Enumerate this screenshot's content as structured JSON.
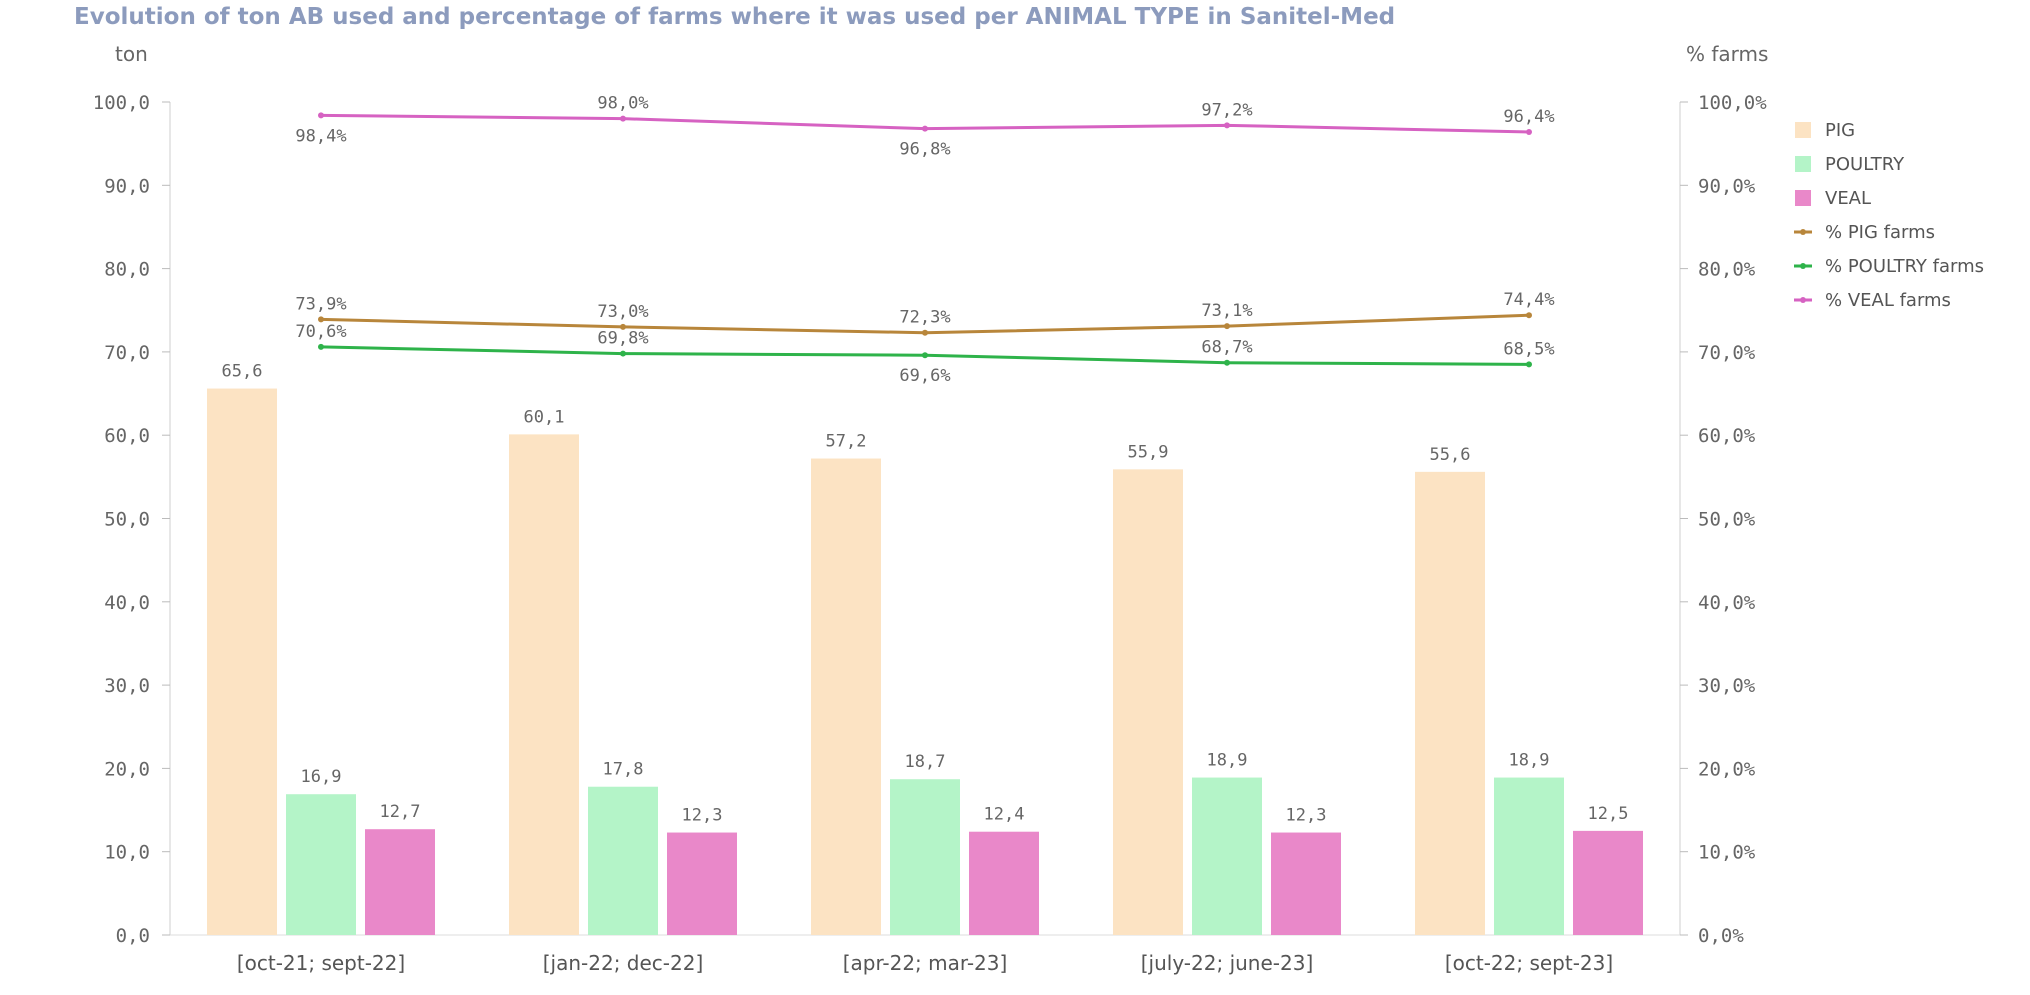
{
  "chart_data": {
    "type": "bar",
    "title": "Evolution of ton AB used and percentage of farms where it was used per ANIMAL TYPE in Sanitel-Med",
    "ylabel": "ton",
    "y2label": "% farms",
    "ylim": [
      0,
      100
    ],
    "y2lim": [
      0,
      100
    ],
    "yticks": [
      "0,0",
      "10,0",
      "20,0",
      "30,0",
      "40,0",
      "50,0",
      "60,0",
      "70,0",
      "80,0",
      "90,0",
      "100,0"
    ],
    "y2ticks": [
      "0,0%",
      "10,0%",
      "20,0%",
      "30,0%",
      "40,0%",
      "50,0%",
      "60,0%",
      "70,0%",
      "80,0%",
      "90,0%",
      "100,0%"
    ],
    "categories": [
      "[oct-21; sept-22]",
      "[jan-22; dec-22]",
      "[apr-22; mar-23]",
      "[july-22; june-23]",
      "[oct-22; sept-23]"
    ],
    "series": [
      {
        "name": "PIG",
        "kind": "bar",
        "color": "#fce3c3",
        "values": [
          65.6,
          60.1,
          57.2,
          55.9,
          55.6
        ],
        "labels": [
          "65,6",
          "60,1",
          "57,2",
          "55,9",
          "55,6"
        ]
      },
      {
        "name": "POULTRY",
        "kind": "bar",
        "color": "#b4f4c8",
        "values": [
          16.9,
          17.8,
          18.7,
          18.9,
          18.9
        ],
        "labels": [
          "16,9",
          "17,8",
          "18,7",
          "18,9",
          "18,9"
        ]
      },
      {
        "name": "VEAL",
        "kind": "bar",
        "color": "#e988c9",
        "values": [
          12.7,
          12.3,
          12.4,
          12.3,
          12.5
        ],
        "labels": [
          "12,7",
          "12,3",
          "12,4",
          "12,3",
          "12,5"
        ]
      },
      {
        "name": "% PIG farms",
        "kind": "line",
        "axis": "right",
        "color": "#b8863b",
        "values": [
          73.9,
          73.0,
          72.3,
          73.1,
          74.4
        ],
        "labels": [
          "73,9%",
          "73,0%",
          "72,3%",
          "73,1%",
          "74,4%"
        ],
        "label_pos": [
          "above",
          "above",
          "above",
          "above",
          "above"
        ]
      },
      {
        "name": "% POULTRY farms",
        "kind": "line",
        "axis": "right",
        "color": "#2eb34a",
        "values": [
          70.6,
          69.8,
          69.6,
          68.7,
          68.5
        ],
        "labels": [
          "70,6%",
          "69,8%",
          "69,6%",
          "68,7%",
          "68,5%"
        ],
        "label_pos": [
          "above",
          "above",
          "below",
          "above",
          "above"
        ]
      },
      {
        "name": "% VEAL farms",
        "kind": "line",
        "axis": "right",
        "color": "#d662c2",
        "values": [
          98.4,
          98.0,
          96.8,
          97.2,
          96.4
        ],
        "labels": [
          "98,4%",
          "98,0%",
          "96,8%",
          "97,2%",
          "96,4%"
        ],
        "label_pos": [
          "below",
          "above",
          "below",
          "above",
          "above"
        ]
      }
    ],
    "legend_position": "right",
    "grid": false
  }
}
